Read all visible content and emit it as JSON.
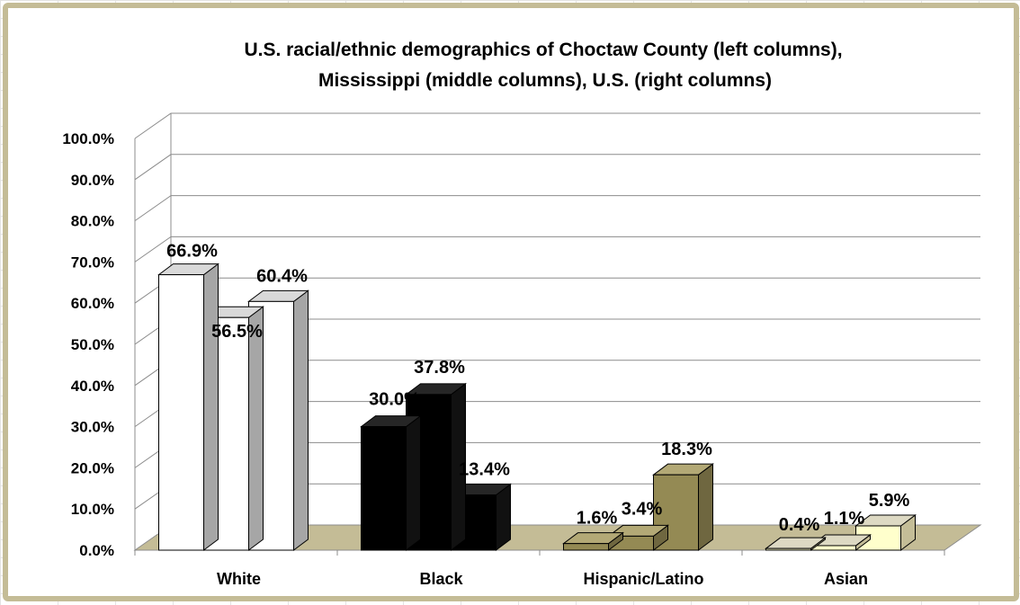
{
  "chart_data": {
    "type": "bar",
    "title_lines": [
      "U.S. racial/ethnic demographics of Choctaw County (left columns),",
      "Mississippi (middle columns), U.S. (right columns)"
    ],
    "categories": [
      "White",
      "Black",
      "Hispanic/Latino",
      "Asian"
    ],
    "series": [
      {
        "values": [
          66.9,
          30.0,
          1.6,
          0.4
        ],
        "labels": [
          "66.9%",
          "30.0%",
          "1.6%",
          "0.4%"
        ]
      },
      {
        "values": [
          56.5,
          37.8,
          3.4,
          1.1
        ],
        "labels": [
          "56.5%",
          "37.8%",
          "3.4%",
          "1.1%"
        ]
      },
      {
        "values": [
          60.4,
          13.4,
          18.3,
          5.9
        ],
        "labels": [
          "60.4%",
          "13.4%",
          "18.3%",
          "5.9%"
        ]
      }
    ],
    "category_colors": {
      "White": {
        "front": "#ffffff",
        "top": "#d9d9d9",
        "side": "#a6a6a6"
      },
      "Black": {
        "front": "#000000",
        "top": "#262626",
        "side": "#111111"
      },
      "Hispanic/Latino": {
        "front": "#948a54",
        "top": "#b3a976",
        "side": "#6f6740"
      },
      "Asian": {
        "front": "#ffffcc",
        "top": "#ddd9c3",
        "side": "#c4bd97"
      }
    },
    "y_ticks": [
      "0.0%",
      "10.0%",
      "20.0%",
      "30.0%",
      "40.0%",
      "50.0%",
      "60.0%",
      "70.0%",
      "80.0%",
      "90.0%",
      "100.0%"
    ],
    "ylim": [
      0,
      100
    ],
    "floor_color": "#c4bc96",
    "grid": true,
    "legend": "none",
    "xlabel": "",
    "ylabel": ""
  }
}
